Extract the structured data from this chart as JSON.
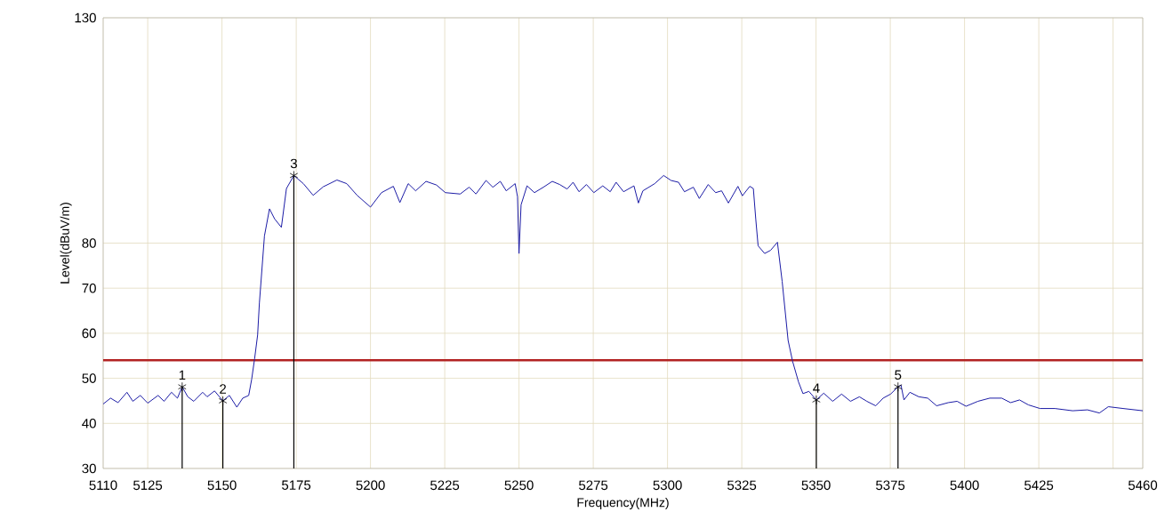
{
  "chart_data": {
    "type": "line",
    "xlabel": "Frequency(MHz)",
    "ylabel": "Level(dBuV/m)",
    "xlim": [
      5110,
      5460
    ],
    "xticks": [
      5110,
      5125,
      5150,
      5175,
      5200,
      5225,
      5250,
      5275,
      5300,
      5325,
      5350,
      5375,
      5400,
      5425,
      {
        "value": 5450,
        "label": null
      },
      5460
    ],
    "ylim": [
      30,
      130
    ],
    "yticks": [
      30,
      40,
      50,
      60,
      70,
      80,
      130
    ],
    "grid": true,
    "series": [
      {
        "color": "#1c1ca6",
        "x": [
          5110,
          5112.5,
          5115,
          5118,
          5120,
          5122.5,
          5125,
          5128.5,
          5130.5,
          5133,
          5135,
          5136.6,
          5138.5,
          5140.5,
          5143.5,
          5145,
          5147.5,
          5150.3,
          5152.5,
          5155,
          5157,
          5159,
          5160,
          5161,
          5162,
          5162.6,
          5164.3,
          5166,
          5167.7,
          5170,
          5171.7,
          5174.2,
          5177.4,
          5180.7,
          5184.1,
          5188.7,
          5192,
          5195.5,
          5200,
          5203.7,
          5207.7,
          5209.9,
          5212.7,
          5215.2,
          5218.7,
          5222.2,
          5225.2,
          5230.2,
          5233.2,
          5235.5,
          5238.9,
          5241.2,
          5243.7,
          5245.7,
          5248.7,
          5249.5,
          5250.0,
          5250.7,
          5252.7,
          5255.2,
          5258.2,
          5261.2,
          5263.7,
          5266.2,
          5268.2,
          5270.2,
          5272.7,
          5275.2,
          5278.2,
          5280.7,
          5282.7,
          5285.2,
          5288.7,
          5290.2,
          5291.7,
          5295.7,
          5298.7,
          5301.2,
          5303.7,
          5305.7,
          5308.7,
          5310.7,
          5313.7,
          5316.2,
          5318.2,
          5320.5,
          5323.7,
          5325.2,
          5327.7,
          5328.9,
          5329.7,
          5330.5,
          5332.7,
          5334.7,
          5337.0,
          5338.6,
          5340.6,
          5342.1,
          5344.1,
          5345.6,
          5347.6,
          5350.1,
          5352.6,
          5355.6,
          5358.6,
          5361.6,
          5364.6,
          5367.1,
          5370.1,
          5372.6,
          5375.1,
          5377.6,
          5378.6,
          5379.6,
          5381.6,
          5384.6,
          5387.6,
          5390.6,
          5394.5,
          5397.5,
          5400.5,
          5404.5,
          5408.5,
          5412.5,
          5415.5,
          5418.5,
          5421.5,
          5425.4,
          5430.4,
          5436.4,
          5441.4,
          5445.4,
          5448.4,
          5453.4,
          5460
        ],
        "values": [
          44.3,
          45.6,
          44.6,
          46.9,
          44.9,
          46.2,
          44.5,
          46.2,
          44.9,
          46.9,
          45.6,
          48.1,
          45.9,
          44.9,
          46.9,
          45.9,
          47.2,
          45.0,
          46.2,
          43.6,
          45.6,
          46.2,
          49.8,
          54.4,
          59.6,
          66.7,
          81.6,
          87.6,
          85.4,
          83.5,
          92.1,
          95.0,
          93.2,
          90.6,
          92.5,
          94.0,
          93.2,
          90.6,
          88.0,
          91.2,
          92.6,
          89.0,
          93.2,
          91.6,
          93.7,
          92.9,
          91.2,
          90.9,
          92.4,
          90.9,
          93.9,
          92.4,
          93.7,
          91.6,
          93.2,
          90.3,
          77.7,
          88.5,
          92.7,
          91.2,
          92.4,
          93.7,
          93.0,
          92.0,
          93.5,
          91.4,
          93.0,
          91.2,
          92.7,
          91.4,
          93.5,
          91.4,
          92.7,
          88.9,
          91.6,
          93.2,
          95.0,
          93.9,
          93.5,
          91.4,
          92.4,
          89.9,
          93.0,
          91.2,
          91.6,
          88.9,
          92.6,
          90.5,
          92.6,
          92.1,
          85.4,
          79.4,
          77.7,
          78.4,
          80.2,
          71.5,
          58.4,
          53.8,
          49.2,
          46.6,
          47.1,
          45.2,
          46.7,
          44.9,
          46.5,
          44.9,
          45.9,
          44.9,
          43.9,
          45.6,
          46.5,
          48.1,
          48.5,
          45.2,
          46.9,
          45.9,
          45.6,
          43.9,
          44.6,
          44.9,
          43.8,
          44.9,
          45.6,
          45.6,
          44.6,
          45.2,
          44.1,
          43.3,
          43.3,
          42.8,
          43.0,
          42.3,
          43.7,
          43.3,
          42.8
        ]
      },
      {
        "type": "lollipop",
        "color": "#000000",
        "marker": "cross",
        "x": [
          5136.6,
          5150.3,
          5174.2,
          5350.1,
          5377.6
        ],
        "values": [
          48.1,
          45.0,
          95.0,
          45.2,
          48.1
        ]
      }
    ],
    "ref_lines": [
      {
        "axis": "y",
        "value": 54,
        "color": "#b22222"
      }
    ],
    "annotations": [
      {
        "text": "1",
        "x": 5136.6,
        "y": 48.1
      },
      {
        "text": "2",
        "x": 5150.3,
        "y": 45.0
      },
      {
        "text": "3",
        "x": 5174.2,
        "y": 95.0
      },
      {
        "text": "4",
        "x": 5350.1,
        "y": 45.2
      },
      {
        "text": "5",
        "x": 5377.6,
        "y": 48.1
      }
    ]
  }
}
